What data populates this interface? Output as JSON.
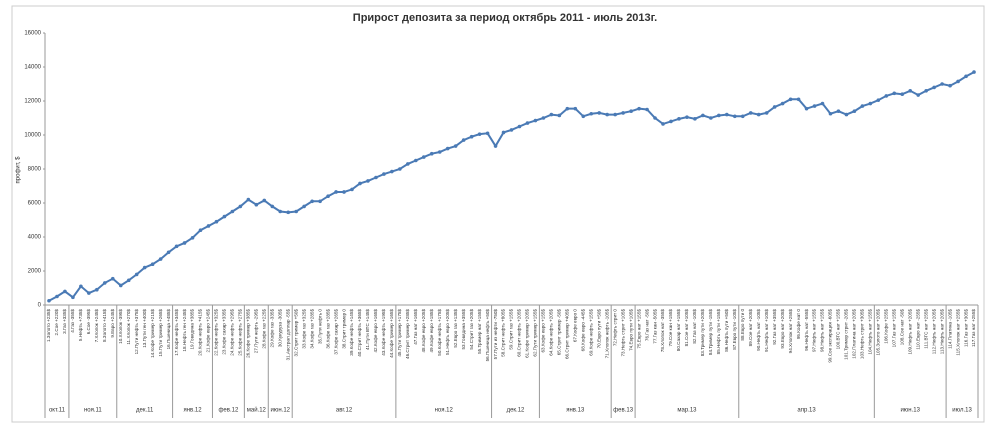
{
  "chart_data": {
    "type": "line",
    "title": "Прирост депозита за период октябрь 2011 - июль 2013г.",
    "y_label": "профит, $",
    "ylim": [
      0,
      16000
    ],
    "yticks": [
      0,
      2000,
      4000,
      6000,
      8000,
      10000,
      12000,
      14000,
      16000
    ],
    "grid": false,
    "categories": [
      "1.Золото +235$",
      "2.Сое +220$",
      "3.Газ +335$",
      "4.Газ -355$",
      "5.Нефть +735$",
      "6.Сое -395$",
      "7.Хлопок +245$",
      "8.Золото +415$",
      "9.Евро +245$",
      "10.Хлопок -395$",
      "11.Хлопок +270$",
      "12.Пути нефть +375$",
      "13.Пути ген +400$",
      "14.Кофе тример +215$",
      "15.Пути тример +265$",
      "16.Пшеница +485$",
      "17.Кофе нефть +345$",
      "18.Нефть ген +245$",
      "19.Говядина +385$",
      "20.Кофе нефть +415$",
      "21.Кофе евро +245$",
      "22.Кофе нефть +325$",
      "23.Кофе сахар +335$",
      "24.Кофе нефть +295$",
      "25.Кофе нефть +275$",
      "26.Кофе тример +385$",
      "27.Пути нефть -295$",
      "28.Кофе газ +225$",
      "29.Кофе газ -335$",
      "30.Кукуруза -305$",
      "31.Австрал доллар -55$",
      "32.Стрит тример +50$",
      "33.Кофе газ +325$",
      "34.Кофе газ +285$",
      "35.Пути нефть 0",
      "36.Кофе газ +285$",
      "37.Кофе сахар +265$",
      "38.Стрит тример 0",
      "39.Кофе нефть +145$",
      "40.Стрит нефть +365$",
      "41.Пути ВТС +145$",
      "42.Кофе евро +165$",
      "43.Кофе нефть +195$",
      "44.Кофе тример +165$",
      "45.Пути тример +175$",
      "46.Стрит тример +285$",
      "47.Газ нат +165$",
      "48.Кофе евро +205$",
      "49.Кофе евро +185$",
      "50.Кофе нефть +175$",
      "51.Нефть евро +205$",
      "52.Евро газ +135$",
      "53.Говядина +355$",
      "54.Стрит газ +205$",
      "55.Тример нат +155$",
      "56.Пшеница нефть +50$",
      "57.Пути из нефти -750$",
      "58.Стрит нефть +805$",
      "59.Стрит газ +155$",
      "60.Стрит нефть +205$",
      "61.Кофе тример +205$",
      "62.Пути тример +155$",
      "63.Кофе евро +155$",
      "64.Кофе нефть +205$",
      "65.Стрит тример -50$",
      "66.Стрит тример +405$",
      "67.Кофе евро 0",
      "68.Кофе евро -445$",
      "69.Кофе нефть +155$",
      "70.Евро пути +50$",
      "71.Хлопок нефть -105$",
      "72.Нефть стрит 0",
      "73.Нефть стрит +105$",
      "74.Евро пути +105$",
      "75.Евро нат +155$",
      "76.Газ нат -50$",
      "77.Газ кан -505$",
      "78.Хлопок нат -355$",
      "79.Сое кан +155$",
      "80.Сахар нат +155$",
      "81.Сое нат +105$",
      "82.Газ нат -105$",
      "83.Тример пути +205$",
      "84.Тример пути -155$",
      "85.Нефть пути +155$",
      "86.Нефть пути +50$",
      "87.Евро пути -105$",
      "88.Евро пути 0",
      "89.Сое нат +205$",
      "90.Нефть нат -105$",
      "91.Нефть нат +105$",
      "92.Газ нат +355$",
      "93.Евро нат +205$",
      "94.Хлопок нат +255$",
      "95.Кофе нат 0",
      "96.Нефть нат -555$",
      "97.Нефть нат +155$",
      "98.Нефть нат +155$",
      "99.Сое экспирация -605$",
      "100.ВТС нат +155$",
      "101.Тример стрит -205$",
      "102.Платина нат +205$",
      "103.Нефть стрит +305$",
      "104.Нефть нат +155$",
      "105.Золото нат +205$",
      "106.Кофе +255$",
      "107.Газ нат +155$",
      "108.Сое нат -50$",
      "109.Нефть нат +205$",
      "110.Евро нат -255$",
      "111.ВТС нат +255$",
      "112.Нефть нат +205$",
      "113.Нефть нат +205$",
      "114.Платина -105$",
      "115.Хлопок нат +255$",
      "116.Газ нат +305$",
      "117.Газ нат +255$"
    ],
    "series": [
      {
        "color": "#4a7ab5",
        "values": [
          250,
          500,
          800,
          450,
          1100,
          700,
          900,
          1300,
          1550,
          1150,
          1450,
          1800,
          2200,
          2400,
          2700,
          3100,
          3450,
          3650,
          3950,
          4400,
          4650,
          4900,
          5200,
          5500,
          5800,
          6200,
          5900,
          6150,
          5800,
          5500,
          5450,
          5500,
          5800,
          6100,
          6100,
          6400,
          6650,
          6650,
          6800,
          7150,
          7300,
          7500,
          7700,
          7850,
          8000,
          8300,
          8500,
          8700,
          8900,
          9000,
          9200,
          9350,
          9700,
          9900,
          10050,
          10100,
          9350,
          10150,
          10300,
          10500,
          10700,
          10850,
          11000,
          11200,
          11150,
          11550,
          11550,
          11100,
          11250,
          11300,
          11200,
          11200,
          11300,
          11400,
          11550,
          11500,
          11000,
          10650,
          10800,
          10950,
          11050,
          10950,
          11150,
          11000,
          11150,
          11200,
          11100,
          11100,
          11300,
          11200,
          11300,
          11650,
          11850,
          12100,
          12100,
          11550,
          11700,
          11850,
          11250,
          11400,
          11200,
          11400,
          11700,
          11850,
          12050,
          12300,
          12450,
          12400,
          12600,
          12350,
          12600,
          12800,
          13000,
          12900,
          13150,
          13450,
          13700
        ]
      }
    ],
    "groups": [
      {
        "label": "окт.11",
        "first": 0,
        "last": 2
      },
      {
        "label": "ноя.11",
        "first": 3,
        "last": 8
      },
      {
        "label": "дек.11",
        "first": 9,
        "last": 15
      },
      {
        "label": "янв.12",
        "first": 16,
        "last": 20
      },
      {
        "label": "фев.12",
        "first": 21,
        "last": 24
      },
      {
        "label": "май.12",
        "first": 25,
        "last": 27
      },
      {
        "label": "июн.12",
        "first": 28,
        "last": 30
      },
      {
        "label": "авг.12",
        "first": 31,
        "last": 43
      },
      {
        "label": "ноя.12",
        "first": 44,
        "last": 55
      },
      {
        "label": "дек.12",
        "first": 56,
        "last": 61
      },
      {
        "label": "янв.13",
        "first": 62,
        "last": 70
      },
      {
        "label": "фев.13",
        "first": 71,
        "last": 73
      },
      {
        "label": "мар.13",
        "first": 74,
        "last": 86
      },
      {
        "label": "апр.13",
        "first": 87,
        "last": 103
      },
      {
        "label": "июн.13",
        "first": 104,
        "last": 112
      },
      {
        "label": "июл.13",
        "first": 113,
        "last": 116
      }
    ]
  }
}
